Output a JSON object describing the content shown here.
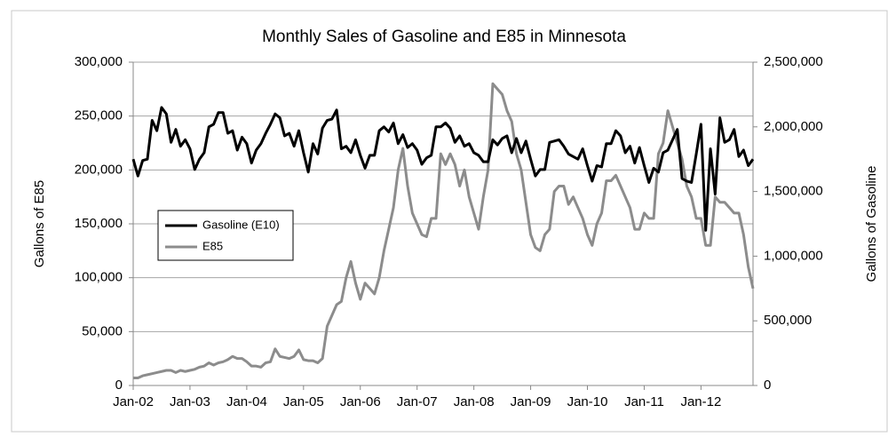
{
  "chart_data": {
    "type": "line",
    "title": "Monthly Sales of Gasoline and E85 in Minnesota",
    "ylabel": "Gallons of E85",
    "y2label": "Gallons of Gasoline",
    "categories": [
      "Jan-02",
      null,
      null,
      null,
      null,
      null,
      null,
      null,
      null,
      null,
      null,
      null,
      "Jan-03",
      null,
      null,
      null,
      null,
      null,
      null,
      null,
      null,
      null,
      null,
      null,
      "Jan-04",
      null,
      null,
      null,
      null,
      null,
      null,
      null,
      null,
      null,
      null,
      null,
      "Jan-05",
      null,
      null,
      null,
      null,
      null,
      null,
      null,
      null,
      null,
      null,
      null,
      "Jan-06",
      null,
      null,
      null,
      null,
      null,
      null,
      null,
      null,
      null,
      null,
      null,
      "Jan-07",
      null,
      null,
      null,
      null,
      null,
      null,
      null,
      null,
      null,
      null,
      null,
      "Jan-08",
      null,
      null,
      null,
      null,
      null,
      null,
      null,
      null,
      null,
      null,
      null,
      "Jan-09",
      null,
      null,
      null,
      null,
      null,
      null,
      null,
      null,
      null,
      null,
      null,
      "Jan-10",
      null,
      null,
      null,
      null,
      null,
      null,
      null,
      null,
      null,
      null,
      null,
      "Jan-11",
      null,
      null,
      null,
      null,
      null,
      null,
      null,
      null,
      null,
      null,
      null,
      "Jan-12",
      null,
      null,
      null,
      null,
      null,
      null,
      null,
      null,
      null,
      null,
      null
    ],
    "series": [
      {
        "name": "Gasoline (E10)",
        "color": "#000000",
        "axis": "y2",
        "values": [
          1750000,
          1620000,
          1740000,
          1750000,
          2050000,
          1970000,
          2150000,
          2100000,
          1880000,
          1980000,
          1850000,
          1900000,
          1830000,
          1670000,
          1750000,
          1800000,
          2000000,
          2020000,
          2110000,
          2110000,
          1950000,
          1970000,
          1820000,
          1920000,
          1870000,
          1720000,
          1820000,
          1870000,
          1950000,
          2020000,
          2100000,
          2070000,
          1930000,
          1950000,
          1850000,
          1970000,
          1800000,
          1650000,
          1870000,
          1790000,
          1990000,
          2050000,
          2060000,
          2130000,
          1830000,
          1850000,
          1800000,
          1900000,
          1780000,
          1680000,
          1780000,
          1780000,
          1970000,
          2000000,
          1960000,
          2030000,
          1870000,
          1940000,
          1840000,
          1870000,
          1820000,
          1710000,
          1760000,
          1780000,
          2000000,
          2000000,
          2030000,
          1990000,
          1880000,
          1930000,
          1850000,
          1870000,
          1800000,
          1780000,
          1730000,
          1730000,
          1900000,
          1860000,
          1910000,
          1930000,
          1800000,
          1910000,
          1800000,
          1890000,
          1750000,
          1620000,
          1670000,
          1670000,
          1880000,
          1890000,
          1900000,
          1850000,
          1790000,
          1770000,
          1750000,
          1830000,
          1700000,
          1580000,
          1700000,
          1690000,
          1870000,
          1870000,
          1970000,
          1930000,
          1800000,
          1850000,
          1720000,
          1840000,
          1700000,
          1570000,
          1680000,
          1650000,
          1800000,
          1820000,
          1900000,
          1980000,
          1600000,
          1580000,
          1570000,
          1790000,
          2020000,
          1200000,
          1830000,
          1480000,
          2070000,
          1880000,
          1900000,
          1980000,
          1770000,
          1820000,
          1700000,
          1750000
        ]
      },
      {
        "name": "E85",
        "color": "#8c8c8c",
        "values": [
          7000,
          7000,
          9000,
          10000,
          11000,
          12000,
          13000,
          14000,
          14000,
          12000,
          14000,
          13000,
          14000,
          15000,
          17000,
          18000,
          21000,
          19000,
          21000,
          22000,
          24000,
          27000,
          25000,
          25000,
          22000,
          18000,
          18000,
          17000,
          21000,
          22000,
          34000,
          27000,
          26000,
          25000,
          27000,
          33000,
          24000,
          23000,
          23000,
          21000,
          25000,
          55000,
          65000,
          75000,
          78000,
          100000,
          115000,
          95000,
          80000,
          95000,
          90000,
          85000,
          100000,
          125000,
          145000,
          165000,
          200000,
          220000,
          185000,
          160000,
          150000,
          140000,
          138000,
          155000,
          155000,
          215000,
          205000,
          215000,
          205000,
          185000,
          200000,
          175000,
          160000,
          145000,
          175000,
          200000,
          280000,
          275000,
          270000,
          255000,
          245000,
          215000,
          200000,
          170000,
          140000,
          128000,
          125000,
          140000,
          145000,
          180000,
          185000,
          185000,
          168000,
          175000,
          165000,
          155000,
          140000,
          130000,
          150000,
          160000,
          190000,
          190000,
          195000,
          185000,
          175000,
          165000,
          145000,
          145000,
          160000,
          155000,
          155000,
          215000,
          225000,
          255000,
          240000,
          225000,
          210000,
          185000,
          175000,
          155000,
          155000,
          130000,
          130000,
          175000,
          170000,
          170000,
          165000,
          160000,
          160000,
          140000,
          110000,
          90000
        ]
      }
    ],
    "ylim": [
      0,
      300000
    ],
    "yticks": [
      0,
      {
        "value": 50000,
        "label": "50,000"
      },
      {
        "value": 100000,
        "label": "100,000"
      },
      {
        "value": 150000,
        "label": "150,000"
      },
      {
        "value": 200000,
        "label": "200,000"
      },
      {
        "value": 250000,
        "label": "250,000"
      },
      {
        "value": 300000,
        "label": "300,000"
      }
    ],
    "y2lim": [
      0,
      2500000
    ],
    "y2ticks": [
      0,
      {
        "value": 500000,
        "label": "500,000"
      },
      {
        "value": 1000000,
        "label": "1,000,000"
      },
      {
        "value": 1500000,
        "label": "1,500,000"
      },
      {
        "value": 2000000,
        "label": "2,000,000"
      },
      {
        "value": 2500000,
        "label": "2,500,000"
      }
    ],
    "grid": true,
    "legend": "left"
  }
}
